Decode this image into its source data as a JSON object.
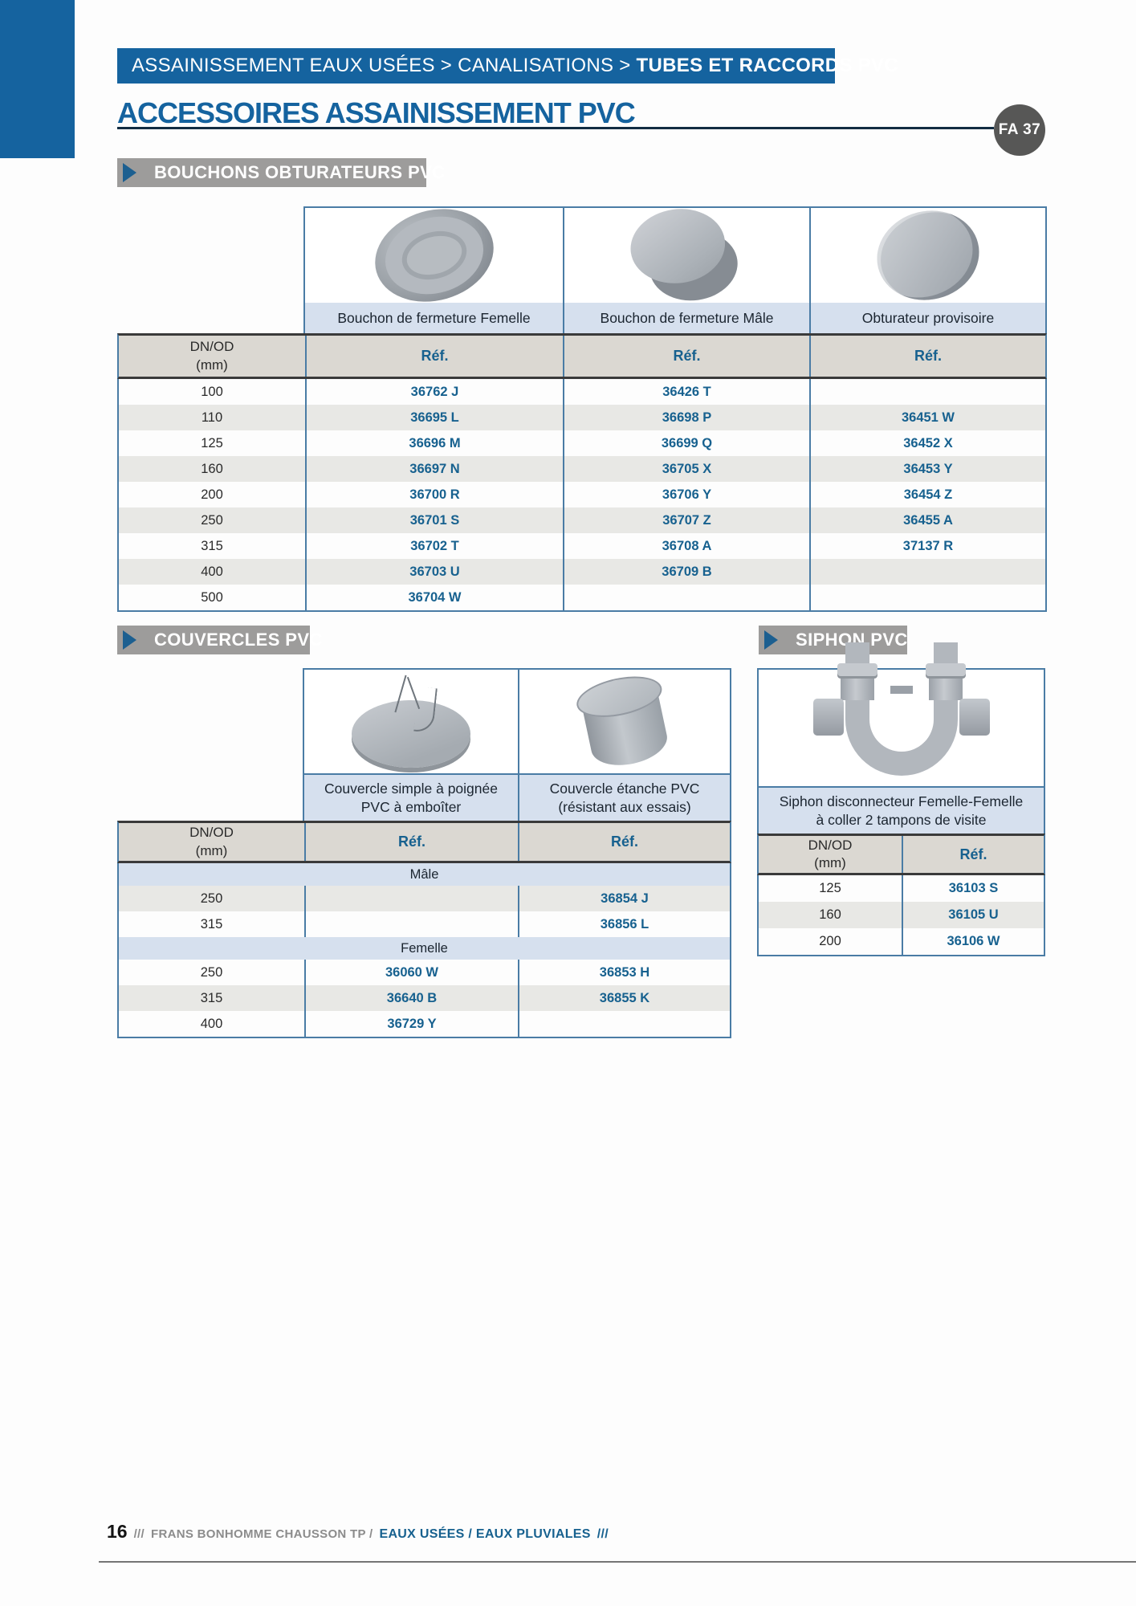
{
  "theme": {
    "primary_blue": "#15639F",
    "ref_blue": "#17618F",
    "bar_gray": "#9D9C9B",
    "badge_gray": "#575756",
    "table_border_blue": "#4A7CA5",
    "header_row_beige": "#DBD8D2",
    "light_blue_row": "#D6E0EE",
    "stripe_gray": "#E8E8E5"
  },
  "header": {
    "breadcrumb_path": "ASSAINISSEMENT EAUX USÉES > CANALISATIONS >",
    "breadcrumb_current": "TUBES ET RACCORDS PVC",
    "title": "ACCESSOIRES ASSAINISSEMENT PVC",
    "badge": "FA 37"
  },
  "sections": {
    "bouchons": "BOUCHONS OBTURATEURS PVC",
    "couvercles": "COUVERCLES PVC",
    "siphon": "SIPHON PVC"
  },
  "labels": {
    "dn": "DN/OD",
    "dn_unit": "(mm)",
    "ref": "Réf."
  },
  "t1": {
    "columns": [
      "Bouchon de fermeture Femelle",
      "Bouchon de fermeture Mâle",
      "Obturateur provisoire"
    ],
    "rows": [
      {
        "dn": "100",
        "refs": [
          "36762 J",
          "36426 T",
          ""
        ]
      },
      {
        "dn": "110",
        "refs": [
          "36695 L",
          "36698 P",
          "36451 W"
        ]
      },
      {
        "dn": "125",
        "refs": [
          "36696 M",
          "36699 Q",
          "36452 X"
        ]
      },
      {
        "dn": "160",
        "refs": [
          "36697 N",
          "36705 X",
          "36453 Y"
        ]
      },
      {
        "dn": "200",
        "refs": [
          "36700 R",
          "36706 Y",
          "36454 Z"
        ]
      },
      {
        "dn": "250",
        "refs": [
          "36701 S",
          "36707 Z",
          "36455 A"
        ]
      },
      {
        "dn": "315",
        "refs": [
          "36702 T",
          "36708 A",
          "37137 R"
        ]
      },
      {
        "dn": "400",
        "refs": [
          "36703 U",
          "36709 B",
          ""
        ]
      },
      {
        "dn": "500",
        "refs": [
          "36704 W",
          "",
          ""
        ]
      }
    ]
  },
  "t2": {
    "columns": [
      {
        "l1": "Couvercle simple à poignée",
        "l2": "PVC à emboîter"
      },
      {
        "l1": "Couvercle étanche PVC",
        "l2": "(résistant aux essais)"
      }
    ],
    "groups": [
      {
        "label": "Mâle",
        "rows": [
          {
            "dn": "250",
            "refs": [
              "",
              "36854 J"
            ]
          },
          {
            "dn": "315",
            "refs": [
              "",
              "36856 L"
            ]
          }
        ]
      },
      {
        "label": "Femelle",
        "rows": [
          {
            "dn": "250",
            "refs": [
              "36060 W",
              "36853 H"
            ]
          },
          {
            "dn": "315",
            "refs": [
              "36640 B",
              "36855 K"
            ]
          },
          {
            "dn": "400",
            "refs": [
              "36729 Y",
              ""
            ]
          }
        ]
      }
    ]
  },
  "t3": {
    "name_l1": "Siphon disconnecteur Femelle-Femelle",
    "name_l2": "à coller 2 tampons de visite",
    "rows": [
      {
        "dn": "125",
        "ref": "36103 S"
      },
      {
        "dn": "160",
        "ref": "36105 U"
      },
      {
        "dn": "200",
        "ref": "36106 W"
      }
    ]
  },
  "footer": {
    "page_number": "16",
    "slashes_left": "///",
    "brand": "FRANS BONHOMME CHAUSSON TP /",
    "highlight": "EAUX USÉES / EAUX PLUVIALES",
    "slashes_right": "///"
  }
}
